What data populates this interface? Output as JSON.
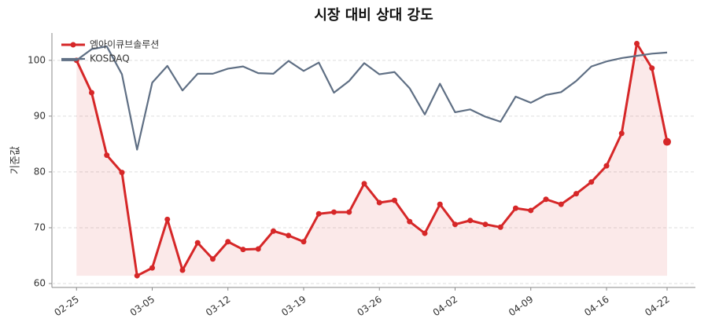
{
  "chart_data": {
    "type": "line",
    "title": "시장 대비 상대 강도",
    "y_label": "기준값",
    "x": [
      null,
      "02-25",
      null,
      null,
      null,
      null,
      "03-05",
      null,
      null,
      null,
      null,
      "03-12",
      null,
      null,
      null,
      null,
      "03-19",
      null,
      null,
      null,
      null,
      "03-26",
      null,
      null,
      null,
      null,
      "04-02",
      null,
      null,
      null,
      null,
      "04-09",
      null,
      null,
      null,
      null,
      "04-16",
      null,
      null,
      null,
      "04-22"
    ],
    "series": [
      {
        "name": "엠아이큐브솔루션",
        "color": "#d62728",
        "fill": true,
        "markers": true,
        "values": [
          null,
          100,
          94.2,
          83.0,
          79.9,
          61.4,
          62.8,
          71.5,
          62.4,
          67.3,
          64.4,
          67.5,
          66.1,
          66.2,
          69.4,
          68.6,
          67.5,
          72.5,
          72.8,
          72.8,
          77.9,
          74.5,
          74.9,
          71.1,
          69.0,
          74.2,
          70.6,
          71.3,
          70.6,
          70.1,
          73.5,
          73.1,
          75.1,
          74.2,
          76.1,
          78.2,
          81.1,
          86.9,
          103.0,
          98.6,
          85.4
        ]
      },
      {
        "name": "KOSDAQ",
        "color": "#5f6f84",
        "fill": false,
        "markers": false,
        "values": [
          100,
          100,
          102.0,
          102.5,
          97.5,
          84.0,
          96.0,
          99.0,
          94.6,
          97.6,
          97.6,
          98.5,
          98.9,
          97.7,
          97.6,
          99.9,
          98.1,
          99.6,
          94.2,
          96.3,
          99.5,
          97.5,
          97.9,
          95.0,
          90.3,
          95.8,
          90.7,
          91.2,
          89.9,
          89.0,
          93.5,
          92.4,
          93.8,
          94.3,
          96.3,
          98.9,
          99.8,
          100.4,
          100.8,
          101.2,
          101.4
        ]
      }
    ],
    "ylim": [
      59.3,
      104.9
    ],
    "yticks": [
      60,
      70,
      80,
      90,
      100
    ],
    "grid": true,
    "legend": "upper-left"
  }
}
